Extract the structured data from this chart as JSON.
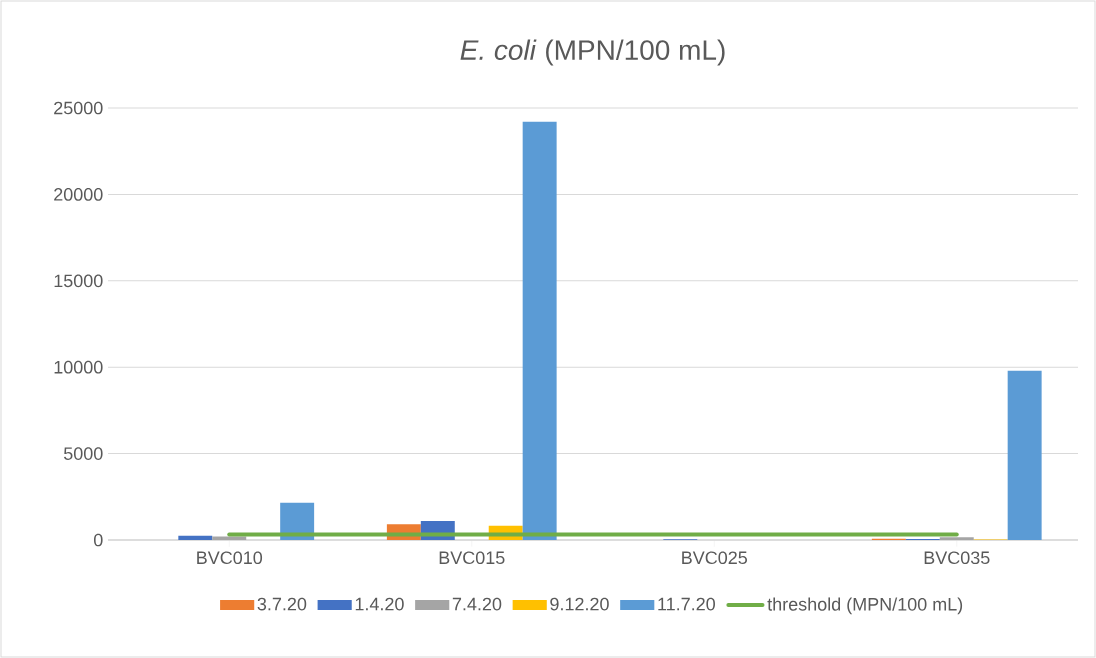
{
  "chart_data": {
    "type": "bar",
    "title": "*E. coli* (MPN/100 mL)",
    "categories": [
      "BVC010",
      "BVC015",
      "BVC025",
      "BVC035"
    ],
    "series": [
      {
        "name": "3.7.20",
        "color": "#ed7d31",
        "values": [
          0,
          910,
          null,
          70
        ]
      },
      {
        "name": "1.4.20",
        "color": "#4472c4",
        "values": [
          250,
          1100,
          50,
          60
        ]
      },
      {
        "name": "7.4.20",
        "color": "#a5a5a5",
        "values": [
          210,
          0,
          null,
          160
        ]
      },
      {
        "name": "9.12.20",
        "color": "#ffc000",
        "values": [
          0,
          830,
          null,
          30
        ]
      },
      {
        "name": "11.7.20",
        "color": "#5b9bd5",
        "values": [
          2150,
          24200,
          null,
          9800
        ]
      },
      {
        "name": "threshold (MPN/100 mL)",
        "color": "#70ad47",
        "type": "line",
        "values": [
          320,
          320,
          320,
          320
        ]
      }
    ],
    "ylim": [
      0,
      25000
    ],
    "yticks": [
      0,
      5000,
      10000,
      15000,
      20000,
      25000
    ],
    "grid": "y",
    "legend": "bottom",
    "marker": "none",
    "line_style": "solid"
  }
}
